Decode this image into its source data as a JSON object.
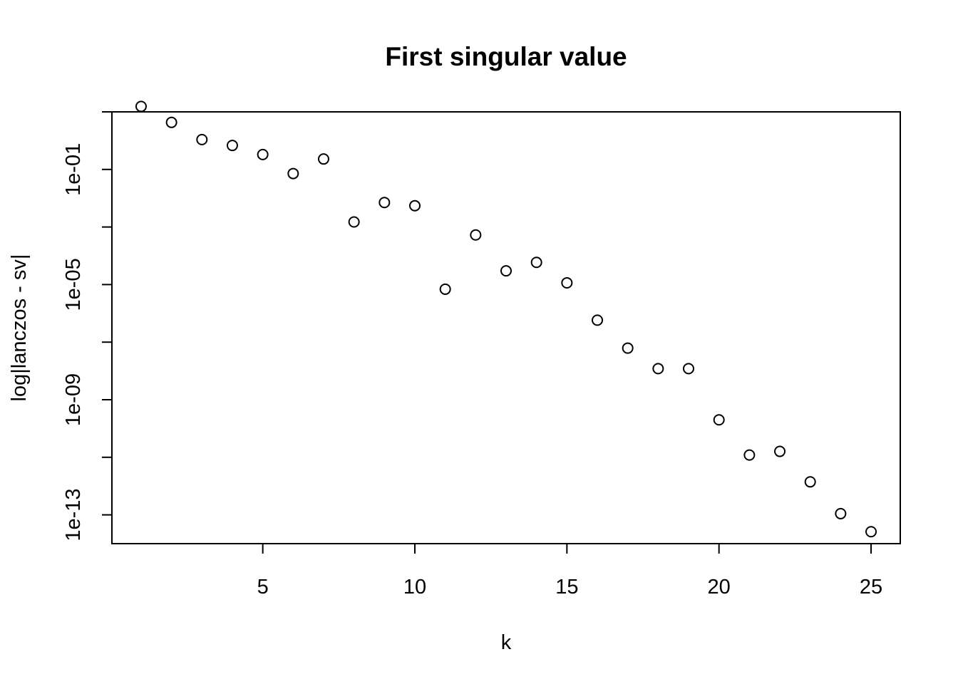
{
  "chart_data": {
    "type": "scatter",
    "title": "First singular value",
    "xlabel": "k",
    "ylabel": "log|lanczos - sv|",
    "y_scale": "log",
    "marker": "open-circle",
    "grid": false,
    "xlim": [
      0.04,
      25.96
    ],
    "ylim": [
      1e-14,
      10
    ],
    "x_ticks": [
      5,
      10,
      15,
      20,
      25
    ],
    "y_major_ticks": [
      1e-13,
      1e-09,
      1e-05,
      0.1
    ],
    "y_minor_ticks": [
      1e-11,
      1e-07,
      0.001,
      10
    ],
    "y_tick_labels": [
      "1e-13",
      "1e-09",
      "1e-05",
      "1e-01"
    ],
    "x": [
      1,
      2,
      3,
      4,
      5,
      6,
      7,
      8,
      9,
      10,
      11,
      12,
      13,
      14,
      15,
      16,
      17,
      18,
      19,
      20,
      21,
      22,
      23,
      24,
      25
    ],
    "y": [
      15.4,
      4.3,
      1.09,
      0.68,
      0.33,
      0.072,
      0.23,
      0.0015,
      0.0071,
      0.0055,
      6.9e-06,
      0.00053,
      3e-05,
      5.9e-05,
      1.15e-05,
      5.8e-07,
      6.2e-08,
      1.2e-08,
      1.2e-08,
      2e-10,
      1.2e-11,
      1.6e-11,
      1.4e-12,
      1.1e-13,
      2.6e-14
    ]
  }
}
